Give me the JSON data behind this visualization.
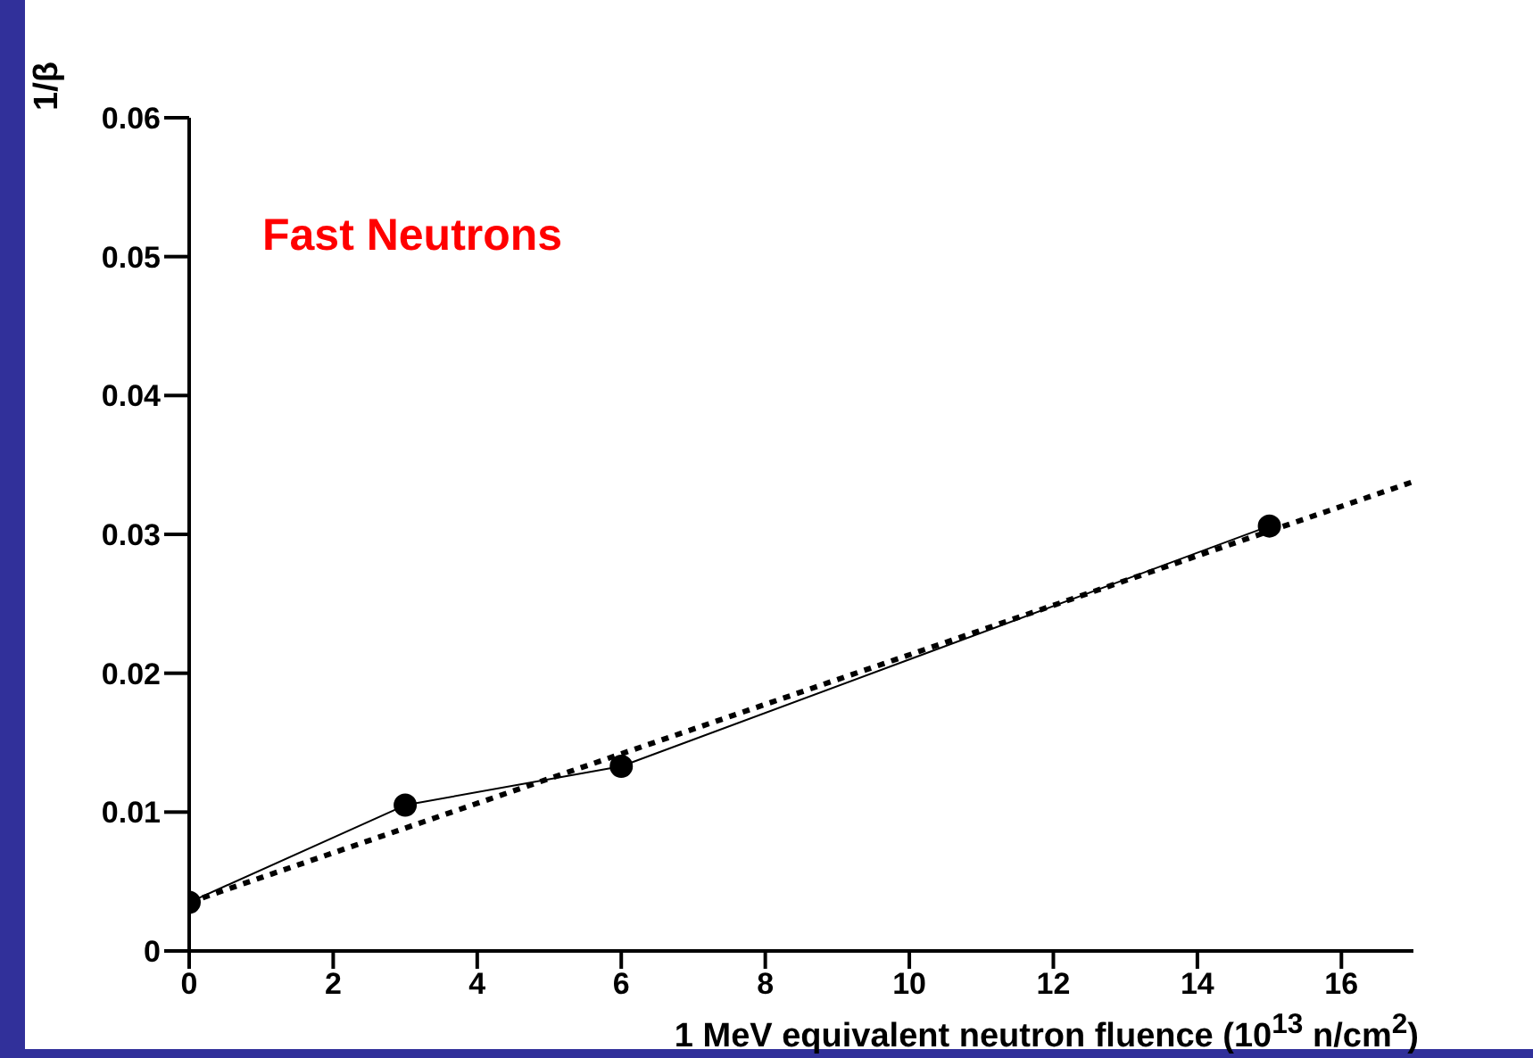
{
  "chart_data": {
    "type": "line",
    "ylabel": "1/β",
    "xlabel": "1 MeV equivalent neutron fluence (10$^{13}$ n/cm$^{2}$)",
    "annotations": [
      "Fast Neutrons"
    ],
    "xlim": [
      0,
      17
    ],
    "xticks": [
      0,
      2,
      4,
      6,
      8,
      10,
      12,
      14,
      16
    ],
    "ylim": [
      0,
      0.06
    ],
    "yticks": [
      0,
      0.01,
      0.02,
      0.03,
      0.04,
      0.05,
      0.06
    ],
    "grid": false,
    "series": [
      {
        "color": "#000000",
        "x": [
          0,
          3,
          6,
          15
        ],
        "values": [
          0.0035,
          0.0105,
          0.0133,
          0.0306
        ],
        "marker": "circle",
        "line_style": "solid"
      },
      {
        "color": "#000000",
        "x": [
          0,
          17
        ],
        "values": [
          0.0035,
          0.0338
        ],
        "marker": "none",
        "line_style": "dotted"
      }
    ]
  }
}
